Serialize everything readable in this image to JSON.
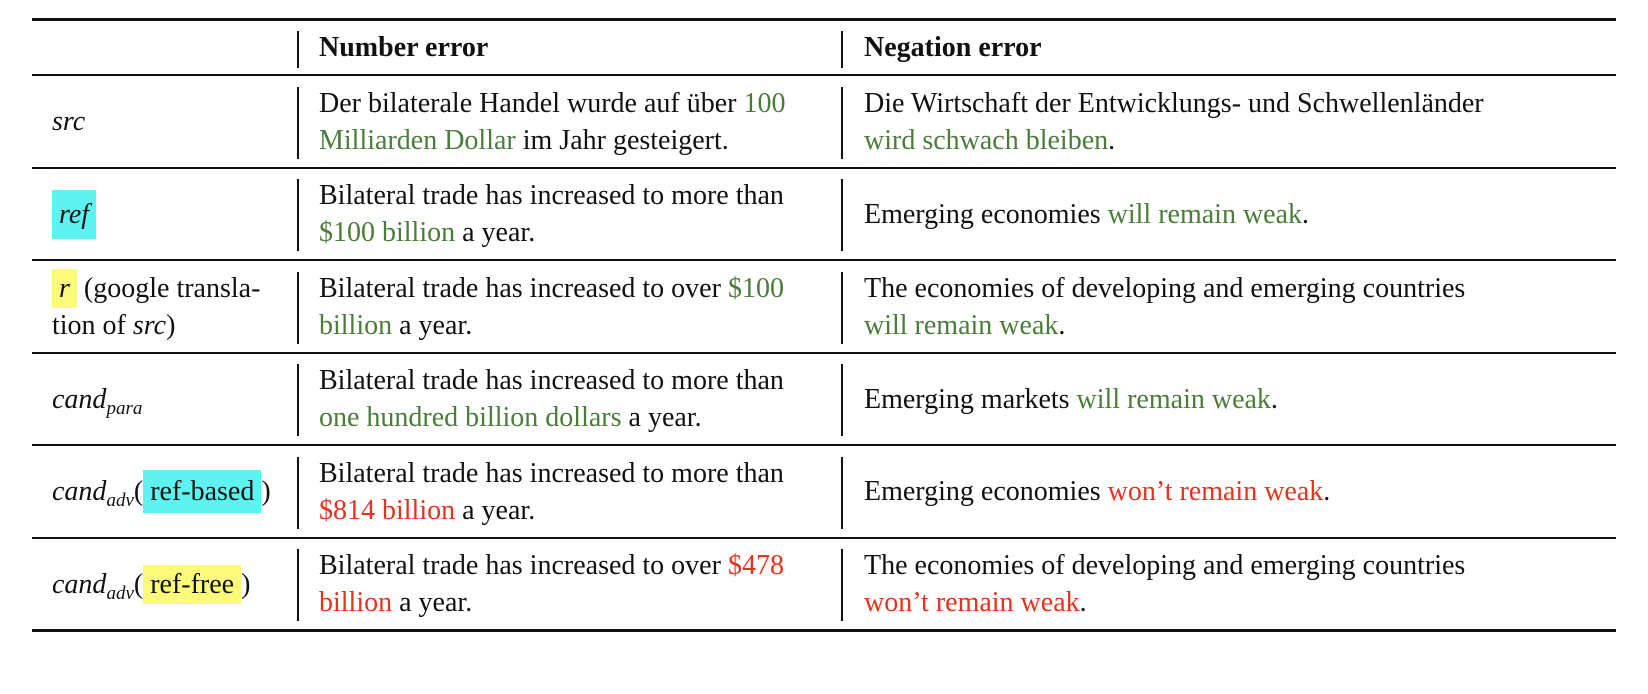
{
  "header": {
    "col0": "",
    "col1": "Number error",
    "col2": "Negation error"
  },
  "rows": [
    {
      "label": "src",
      "number": {
        "a": "Der bilaterale Handel wurde auf über ",
        "b": "100",
        "c": "Milliarden Dollar",
        "d": " im Jahr gesteigert."
      },
      "negation": {
        "a": "Die Wirtschaft der Entwicklungs- und Schwellenländer",
        "b": "wird schwach bleiben",
        "c": "."
      }
    },
    {
      "label": "ref",
      "number": {
        "a": "Bilateral trade has increased to more than",
        "b": "$100 billion",
        "c": " a year."
      },
      "negation": {
        "a": "Emerging economies ",
        "b": "will remain weak",
        "c": "."
      }
    },
    {
      "label": {
        "box": "r",
        "a": " (google transla-",
        "b": "tion of ",
        "c": "src",
        "d": ")"
      },
      "number": {
        "a": "Bilateral trade has increased to over ",
        "b": "$100",
        "c": "billion",
        "d": " a year."
      },
      "negation": {
        "a": "The economies of developing and emerging countries",
        "b": "will remain weak",
        "c": "."
      }
    },
    {
      "label": {
        "main": "cand",
        "sub": "para"
      },
      "number": {
        "a": "Bilateral trade has increased to more than",
        "b": "one hundred billion dollars",
        "c": " a year."
      },
      "negation": {
        "a": "Emerging markets ",
        "b": "will remain weak",
        "c": "."
      }
    },
    {
      "label": {
        "main": "cand",
        "sub": "adv",
        "open": "(",
        "box": "ref-based",
        "close": ")"
      },
      "number": {
        "a": "Bilateral trade has increased to more than",
        "b": "$814 billion",
        "c": " a year."
      },
      "negation": {
        "a": "Emerging economies ",
        "b": "won’t remain weak",
        "c": "."
      }
    },
    {
      "label": {
        "main": "cand",
        "sub": "adv",
        "open": "(",
        "box": "ref-free",
        "close": ")"
      },
      "number": {
        "a": "Bilateral trade has increased to over ",
        "b": "$478",
        "c": "billion",
        "d": " a year."
      },
      "negation": {
        "a": "The economies of developing and emerging countries",
        "b": "won’t remain weak",
        "c": "."
      }
    }
  ],
  "colors": {
    "correct_span": "#4a7d3a",
    "error_span": "#e8321f",
    "ref_based_highlight": "#5ef2f0",
    "ref_free_highlight": "#fbfa7a"
  }
}
